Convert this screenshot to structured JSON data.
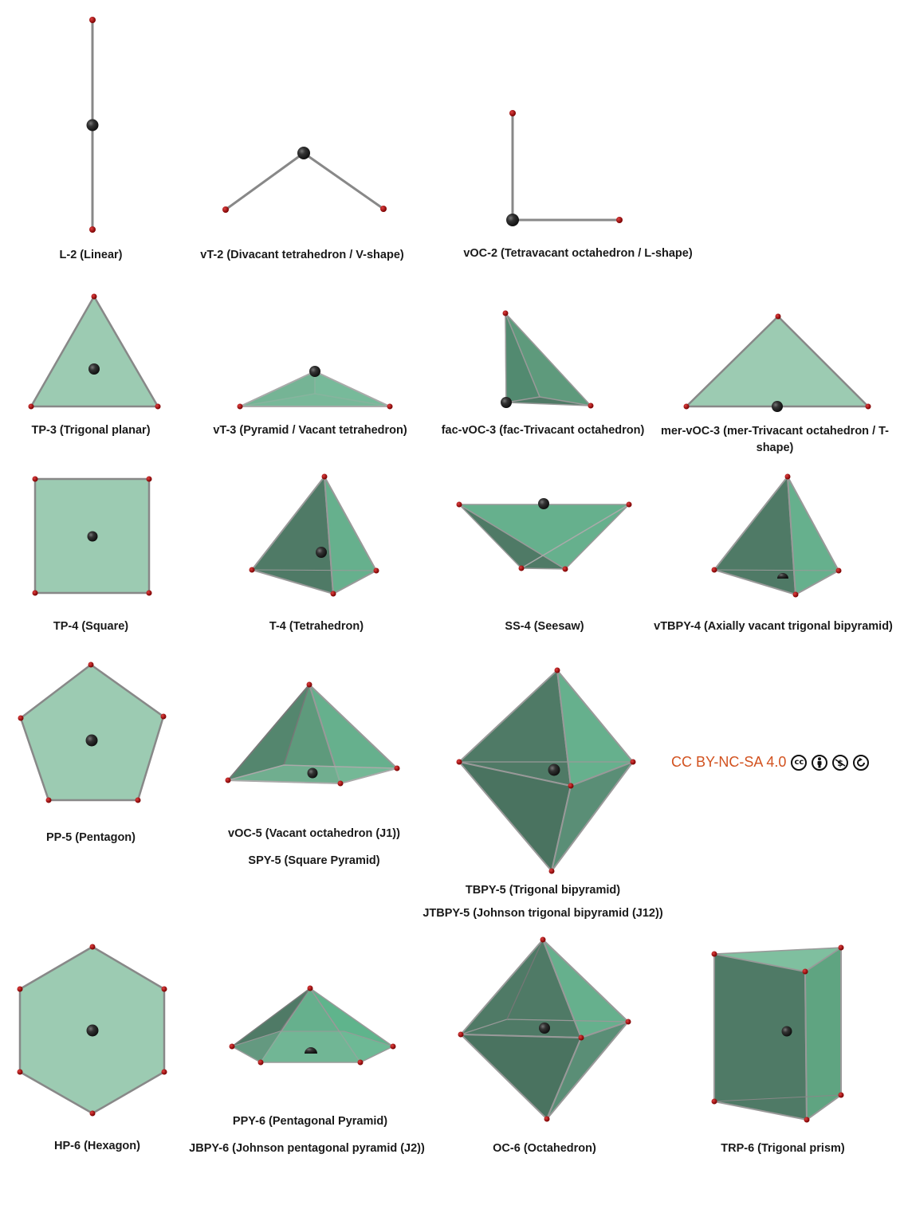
{
  "labels": {
    "l2": "L-2 (Linear)",
    "vt2": "vT-2 (Divacant tetrahedron / V-shape)",
    "voc2": "vOC-2 (Tetravacant octahedron / L-shape)",
    "tp3": "TP-3 (Trigonal planar)",
    "vt3": "vT-3 (Pyramid / Vacant tetrahedron)",
    "facvoc3": "fac-vOC-3 (fac-Trivacant octahedron)",
    "mervoc3": "mer-vOC-3 (mer-Trivacant octahedron / T-shape)",
    "tp4": "TP-4 (Square)",
    "t4": "T-4 (Tetrahedron)",
    "ss4": "SS-4 (Seesaw)",
    "vtbpy4": "vTBPY-4 (Axially vacant trigonal bipyramid)",
    "pp5": "PP-5 (Pentagon)",
    "voc5": "vOC-5 (Vacant octahedron (J1))",
    "spy5": "SPY-5 (Square Pyramid)",
    "tbpy5": "TBPY-5 (Trigonal bipyramid)",
    "jtbpy5": "JTBPY-5 (Johnson trigonal bipyramid (J12))",
    "hp6": "HP-6 (Hexagon)",
    "ppy6": "PPY-6 (Pentagonal Pyramid)",
    "jbpy6": "JBPY-6 (Johnson pentagonal pyramid (J2))",
    "oc6": "OC-6 (Octahedron)",
    "trp6": "TRP-6 (Trigonal prism)"
  },
  "license": {
    "text": "CC BY-NC-SA 4.0",
    "icons": [
      "cc-icon",
      "by-person-icon",
      "nc-dollar-icon",
      "sa-share-icon"
    ],
    "color": "#d2521f"
  },
  "colors": {
    "face_light": "#9ccbb2",
    "face_mid": "#66b08d",
    "face_dark": "#4f7a66",
    "edge": "#8c8c8c",
    "vertex": "#b01010",
    "atom": "#1e1e1e"
  }
}
